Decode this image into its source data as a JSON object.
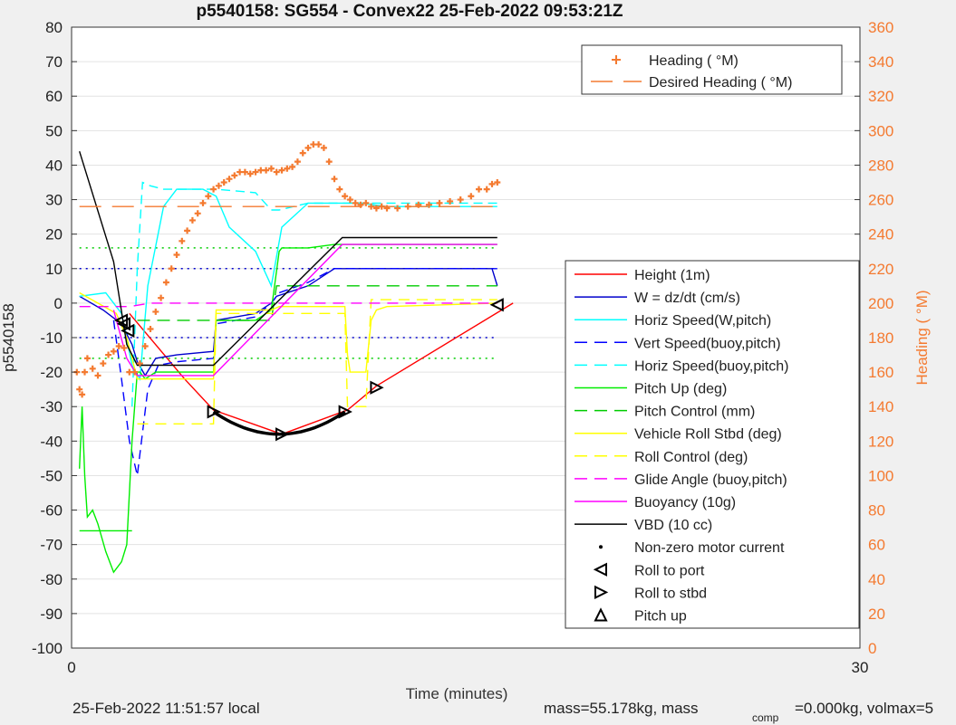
{
  "chart_data": {
    "type": "line",
    "title": "p5540158: SG554 - Convex22 25-Feb-2022 09:53:21Z",
    "xlabel": "Time (minutes)",
    "ylabel": "p5540158",
    "y2label": "Heading (  °M)",
    "xlim": [
      0,
      30
    ],
    "ylim": [
      -100,
      80
    ],
    "y2lim": [
      0,
      360
    ],
    "x_ticks": [
      "0",
      "30"
    ],
    "y_ticks": [
      "80",
      "70",
      "60",
      "50",
      "40",
      "30",
      "20",
      "10",
      "0",
      "-10",
      "-20",
      "-30",
      "-40",
      "-50",
      "-60",
      "-70",
      "-80",
      "-90",
      "-100"
    ],
    "y2_ticks": [
      "360",
      "340",
      "320",
      "300",
      "280",
      "260",
      "240",
      "220",
      "200",
      "180",
      "160",
      "140",
      "120",
      "100",
      "80",
      "60",
      "40",
      "20",
      "0"
    ],
    "grid": true,
    "legend_top": {
      "placement": "top-right",
      "entries": [
        {
          "label": "Heading (  °M)",
          "color": "#f47a30",
          "style": "plus"
        },
        {
          "label": "Desired Heading (   °M)",
          "color": "#f47a30",
          "style": "dash"
        }
      ]
    },
    "legend": {
      "placement": "right",
      "entries": [
        {
          "label": "Height (1m)",
          "color": "#ff0000",
          "style": "solid"
        },
        {
          "label": "W = dz/dt (cm/s)",
          "color": "#0000cc",
          "style": "solid"
        },
        {
          "label": "Horiz Speed(W,pitch)",
          "color": "#00ffff",
          "style": "solid"
        },
        {
          "label": "Vert Speed(buoy,pitch)",
          "color": "#0000ff",
          "style": "dash"
        },
        {
          "label": "Horiz Speed(buoy,pitch)",
          "color": "#00ffff",
          "style": "dash"
        },
        {
          "label": "Pitch Up (deg)",
          "color": "#00ee00",
          "style": "solid"
        },
        {
          "label": "Pitch Control (mm)",
          "color": "#00cc00",
          "style": "dash"
        },
        {
          "label": "Vehicle Roll Stbd (deg)",
          "color": "#ffff00",
          "style": "solid"
        },
        {
          "label": "Roll Control (deg)",
          "color": "#ffff00",
          "style": "dash"
        },
        {
          "label": "Glide Angle (buoy,pitch)",
          "color": "#ff00ff",
          "style": "dash"
        },
        {
          "label": "Buoyancy (10g)",
          "color": "#ff00ff",
          "style": "solid"
        },
        {
          "label": "VBD (10 cc)",
          "color": "#000000",
          "style": "solid"
        },
        {
          "label": "Non-zero motor current",
          "color": "#000000",
          "style": "dot"
        },
        {
          "label": "Roll to port",
          "color": "#000000",
          "style": "tri-left"
        },
        {
          "label": "Roll to stbd",
          "color": "#000000",
          "style": "tri-right"
        },
        {
          "label": "Pitch up",
          "color": "#000000",
          "style": "tri-up"
        }
      ]
    },
    "series": [
      {
        "name": "Height (1m)",
        "color": "#ff0000",
        "dash": "",
        "x": [
          2.2,
          4.3,
          5.4,
          8,
          10.5,
          11.6,
          16.8
        ],
        "y": [
          -3,
          -22,
          -31,
          -38,
          -31,
          -24,
          0
        ]
      },
      {
        "name": "W = dz/dt (cm/s)",
        "color": "#0000cc",
        "dash": "",
        "x": [
          0.3,
          1.2,
          1.9,
          2.3,
          2.5,
          2.8,
          3.2,
          4,
          5.4,
          5.5,
          7,
          7.6,
          7.8,
          9,
          10,
          11,
          12,
          13,
          14,
          15,
          16,
          16.2
        ],
        "y": [
          2,
          -2,
          -6,
          -12,
          -17,
          -21,
          -16,
          -15,
          -14,
          -5,
          -3,
          0,
          2,
          5,
          10,
          10,
          10,
          10,
          10,
          10,
          10,
          5
        ]
      },
      {
        "name": "Horiz Speed(W,pitch)",
        "color": "#00ffff",
        "dash": "",
        "x": [
          0.3,
          1.3,
          1.9,
          2.3,
          2.6,
          2.9,
          3.5,
          4,
          5,
          5.5,
          6,
          7,
          7.6,
          8,
          9,
          10,
          11,
          12,
          13,
          14,
          15,
          16.2
        ],
        "y": [
          2,
          3,
          -3,
          -18,
          -22,
          5,
          28,
          33,
          33,
          31,
          22,
          15,
          5,
          22,
          29,
          29,
          29,
          28,
          28,
          28,
          28,
          28
        ]
      },
      {
        "name": "Vert Speed(buoy,pitch)",
        "color": "#0000ff",
        "dash": "10,6",
        "x": [
          1.6,
          1.9,
          2.2,
          2.5,
          2.9,
          3.3,
          4,
          5.4,
          5.5,
          7,
          7.6,
          7.9,
          9,
          10,
          11,
          12,
          16.2
        ],
        "y": [
          -5,
          -22,
          -40,
          -50,
          -25,
          -18,
          -17,
          -16,
          -6,
          -4,
          0,
          3,
          6,
          10,
          10,
          10,
          10
        ]
      },
      {
        "name": "Horiz Speed(buoy,pitch)",
        "color": "#00ffff",
        "dash": "10,6",
        "x": [
          2.3,
          2.5,
          2.7,
          3,
          3.5,
          5.4,
          5.5,
          7,
          7.6,
          7.9,
          9,
          10,
          11,
          12,
          16.2
        ],
        "y": [
          -30,
          10,
          35,
          34,
          33,
          33,
          33,
          32,
          27,
          27,
          29,
          29,
          29,
          29,
          29
        ]
      },
      {
        "name": "Pitch Up (deg)",
        "color": "#00ee00",
        "dash": "",
        "x": [
          0.3,
          0.4,
          0.5,
          0.6,
          0.8,
          1,
          1.3,
          1.6,
          1.9,
          2.1,
          2.3,
          2.5,
          2.6,
          2.8,
          3,
          3.2,
          3.5,
          5.4,
          5.5,
          7,
          7.6,
          7.9,
          8,
          9,
          10,
          11,
          12,
          13,
          14,
          15,
          16.2
        ],
        "y": [
          -48,
          -30,
          -50,
          -62,
          -60,
          -64,
          -72,
          -78,
          -75,
          -70,
          -40,
          -20,
          -20,
          -22,
          -21,
          -20,
          -20,
          -20,
          -5,
          -5,
          -2,
          15,
          16,
          16,
          17,
          17,
          17,
          17,
          17,
          17,
          17
        ]
      },
      {
        "name": "Pitch Control (mm)",
        "color": "#00cc00",
        "dash": "14,8",
        "x": [
          2.5,
          5.4,
          5.5,
          7.6,
          7.8,
          16.2
        ],
        "y": [
          -5,
          -5,
          -5,
          -5,
          5,
          5
        ]
      },
      {
        "name": "Pitch Up lower",
        "color": "#00ee00",
        "dash": "",
        "x": [
          0.3,
          2.3
        ],
        "y": [
          -66,
          -66
        ]
      },
      {
        "name": "Vehicle Roll Stbd (deg)",
        "color": "#ffff00",
        "dash": "",
        "x": [
          0.3,
          1,
          1.7,
          2.1,
          2.5,
          3,
          5.4,
          5.5,
          7.6,
          7.9,
          10.4,
          10.5,
          10.6,
          11.2,
          11.4,
          11.6,
          12,
          16.2
        ],
        "y": [
          3,
          0,
          -3,
          -10,
          -22,
          -22,
          -22,
          -2,
          -2,
          -1,
          -1,
          -15,
          -20,
          -20,
          -5,
          -2,
          -1,
          0
        ]
      },
      {
        "name": "Roll Control (deg)",
        "color": "#ffff00",
        "dash": "12,8",
        "x": [
          2.5,
          5.4,
          5.5,
          10.4,
          10.5,
          11.2,
          11.4,
          16.2
        ],
        "y": [
          -35,
          -35,
          -3,
          -3,
          -30,
          -30,
          1,
          1
        ]
      },
      {
        "name": "Glide Angle (buoy,pitch)",
        "color": "#ff00ff",
        "dash": "12,8",
        "x": [
          0.3,
          2.2,
          3,
          16.2
        ],
        "y": [
          -1,
          -1,
          0,
          0
        ]
      },
      {
        "name": "Buoyancy (10g)",
        "color": "#ff00ff",
        "dash": "",
        "x": [
          1.6,
          2.1,
          2.5,
          5.4,
          10.3,
          16.2
        ],
        "y": [
          -2,
          -16,
          -21,
          -21,
          17,
          17
        ]
      },
      {
        "name": "VBD (10 cc)",
        "color": "#000000",
        "dash": "",
        "x": [
          0.3,
          1.6,
          2.1,
          2.5,
          5.4,
          10.3,
          16.2
        ],
        "y": [
          44,
          12,
          -12,
          -18,
          -18,
          19,
          19
        ]
      },
      {
        "name": "Desired Heading (   °M)",
        "color": "#f47a30",
        "dash": "24,12",
        "axis": "right",
        "x": [
          0.3,
          16.2
        ],
        "y": [
          256,
          256
        ]
      }
    ],
    "reference_lines": [
      {
        "color": "#00cc00",
        "dash": "2,5",
        "y": 16
      },
      {
        "color": "#00cc00",
        "dash": "2,5",
        "y": -16
      },
      {
        "color": "#0000cc",
        "dash": "2,5",
        "y": 10
      },
      {
        "color": "#0000cc",
        "dash": "2,5",
        "y": -10
      }
    ],
    "heading_points": {
      "name": "Heading (  °M)",
      "color": "#f47a30",
      "axis": "right",
      "x": [
        0.2,
        0.3,
        0.4,
        0.5,
        0.6,
        0.8,
        1.0,
        1.2,
        1.4,
        1.6,
        1.8,
        2.0,
        2.2,
        2.4,
        2.6,
        2.8,
        3.0,
        3.2,
        3.4,
        3.6,
        3.8,
        4.0,
        4.2,
        4.4,
        4.6,
        4.8,
        5.0,
        5.2,
        5.4,
        5.6,
        5.8,
        6.0,
        6.2,
        6.4,
        6.6,
        6.8,
        7.0,
        7.2,
        7.4,
        7.6,
        7.8,
        8.0,
        8.2,
        8.4,
        8.6,
        8.8,
        9.0,
        9.2,
        9.4,
        9.6,
        9.8,
        10.0,
        10.2,
        10.4,
        10.6,
        10.8,
        11.0,
        11.2,
        11.4,
        11.6,
        11.8,
        12.0,
        12.4,
        12.8,
        13.2,
        13.6,
        14.0,
        14.4,
        14.8,
        15.2,
        15.5,
        15.8,
        16.0,
        16.2
      ],
      "y": [
        160,
        150,
        147,
        160,
        168,
        162,
        158,
        165,
        170,
        172,
        175,
        174,
        160,
        160,
        165,
        175,
        185,
        195,
        203,
        212,
        220,
        228,
        236,
        242,
        248,
        252,
        258,
        262,
        266,
        268,
        270,
        272,
        274,
        276,
        276,
        275,
        276,
        277,
        277,
        278,
        276,
        277,
        278,
        279,
        282,
        287,
        290,
        292,
        292,
        290,
        282,
        272,
        266,
        262,
        260,
        258,
        257,
        258,
        256,
        255,
        256,
        255,
        255,
        256,
        257,
        257,
        258,
        259,
        260,
        262,
        266,
        266,
        269,
        270
      ]
    },
    "markers": [
      {
        "type": "tri-left",
        "x": 1.9,
        "y": -5
      },
      {
        "type": "tri-left",
        "x": 2.0,
        "y": -6
      },
      {
        "type": "tri-left",
        "x": 2.15,
        "y": -8
      },
      {
        "type": "tri-right",
        "x": 5.4,
        "y": -31.5
      },
      {
        "type": "tri-right",
        "x": 8.0,
        "y": -38
      },
      {
        "type": "tri-right",
        "x": 10.4,
        "y": -31.5
      },
      {
        "type": "tri-right",
        "x": 11.6,
        "y": -24.5
      },
      {
        "type": "tri-left",
        "x": 16.2,
        "y": -0.5
      }
    ],
    "motor_current": [
      {
        "x0": 5.4,
        "x1": 10.4,
        "y_from": -31.5,
        "y_mid": -38,
        "y_to": -31.5
      }
    ],
    "footer": {
      "local_time": "25-Feb-2022 11:51:57 local",
      "mass_text": "mass=55.178kg, mass",
      "comp_sub": "comp",
      "mass_text2": "=0.000kg, volmax=5"
    }
  }
}
